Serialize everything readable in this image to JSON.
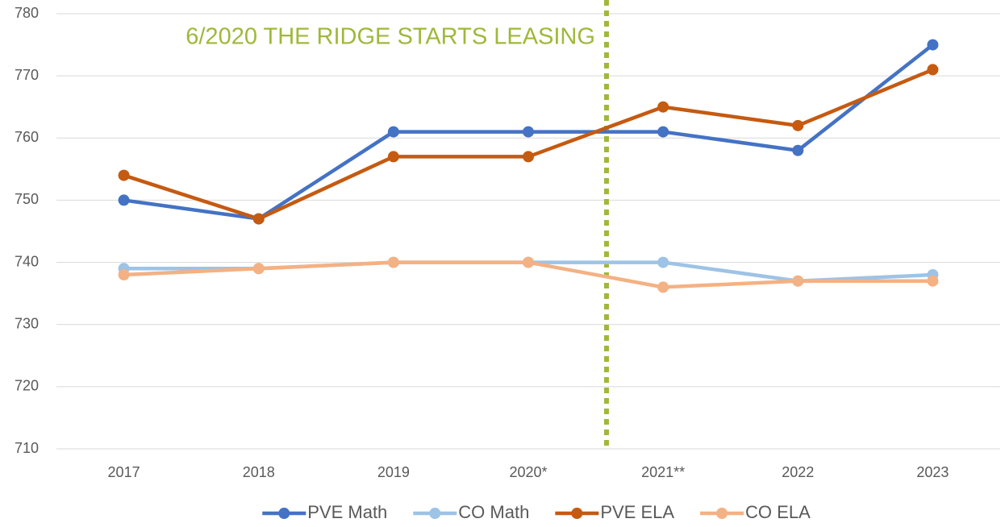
{
  "chart_data": {
    "type": "line",
    "annotation": "6/2020 THE RIDGE STARTS LEASING",
    "annotation_color": "#9fb83a",
    "categories": [
      "2017",
      "2018",
      "2019",
      "2020*",
      "2021**",
      "2022",
      "2023"
    ],
    "series": [
      {
        "name": "PVE Math",
        "color": "#4472c4",
        "values": [
          750,
          747,
          761,
          761,
          761,
          758,
          775
        ]
      },
      {
        "name": "CO Math",
        "color": "#9dc3e6",
        "values": [
          739,
          739,
          740,
          740,
          740,
          737,
          738
        ]
      },
      {
        "name": "PVE ELA",
        "color": "#c55a11",
        "values": [
          754,
          747,
          757,
          757,
          765,
          762,
          771
        ]
      },
      {
        "name": "CO ELA",
        "color": "#f4b183",
        "values": [
          738,
          739,
          740,
          740,
          736,
          737,
          737
        ]
      }
    ],
    "ylim": [
      710,
      780
    ],
    "yticks": [
      710,
      720,
      730,
      740,
      750,
      760,
      770,
      780
    ],
    "grid": true,
    "legend": "bottom"
  }
}
